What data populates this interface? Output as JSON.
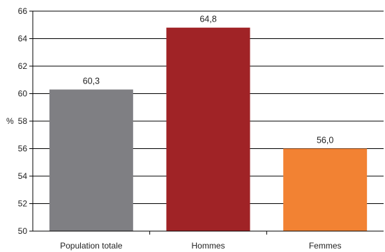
{
  "chart_data": {
    "type": "bar",
    "categories": [
      "Population totale",
      "Hommes",
      "Femmes"
    ],
    "values": [
      60.3,
      64.8,
      56.0
    ],
    "value_labels": [
      "60,3",
      "64,8",
      "56,0"
    ],
    "bar_colors": [
      "#7f7f83",
      "#a02326",
      "#f28233"
    ],
    "title": "",
    "xlabel": "",
    "ylabel": "%",
    "ylim": [
      50,
      66
    ],
    "yticks": [
      50,
      52,
      54,
      56,
      58,
      60,
      62,
      64,
      66
    ],
    "grid": true,
    "legend": "none"
  }
}
